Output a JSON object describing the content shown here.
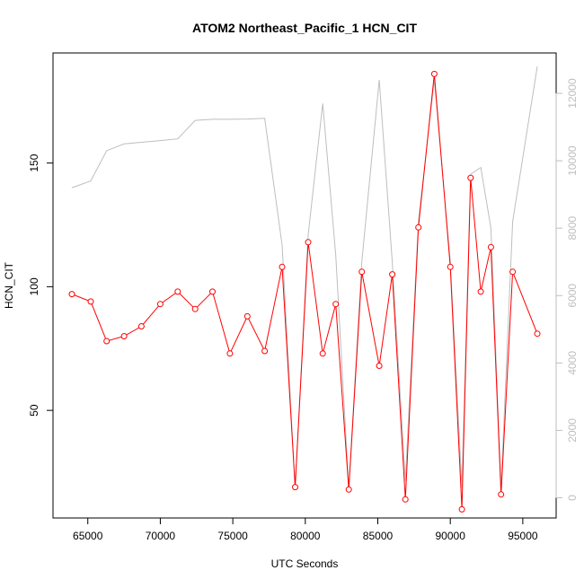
{
  "chart_data": {
    "type": "line",
    "title": "ATOM2 Northeast_Pacific_1 HCN_CIT",
    "xlabel": "UTC Seconds",
    "ylabel": "HCN_CIT",
    "xlim": [
      62600,
      97300
    ],
    "ylim": [
      6.5,
      194.5
    ],
    "y2lim": [
      -600,
      13200
    ],
    "xticks": [
      65000,
      70000,
      75000,
      80000,
      85000,
      90000,
      95000
    ],
    "yticks": [
      50,
      100,
      150
    ],
    "y2ticks": [
      0,
      2000,
      4000,
      6000,
      8000,
      10000,
      12000
    ],
    "colors": {
      "primary": "#ff0000",
      "secondary": "#bebebe",
      "axis": "#000000"
    },
    "series": [
      {
        "axis": "left",
        "color": "#ff0000",
        "markers": "open-circle",
        "x": [
          63900,
          65200,
          66300,
          67500,
          68700,
          70000,
          71200,
          72400,
          73600,
          74800,
          76000,
          77200,
          78400,
          79300,
          80200,
          81200,
          82100,
          83000,
          83900,
          85100,
          86000,
          86900,
          87800,
          88900,
          90000,
          90800,
          91400,
          92100,
          92800,
          93500,
          94300,
          96000
        ],
        "y": [
          97,
          94,
          78,
          80,
          84,
          93,
          98,
          91,
          98,
          73,
          88,
          74,
          108,
          19,
          118,
          73,
          93,
          18,
          106,
          68,
          105,
          14,
          124,
          186,
          108,
          10,
          144,
          98,
          116,
          16,
          106,
          81
        ]
      },
      {
        "axis": "right",
        "color": "#bebebe",
        "markers": "none",
        "x": [
          63900,
          65200,
          66300,
          67500,
          68700,
          70000,
          71200,
          72400,
          73600,
          74800,
          76000,
          77200,
          78400,
          79300,
          80200,
          81200,
          82100,
          83000,
          83900,
          85100,
          86000,
          86900,
          87800,
          88900,
          90000,
          90800,
          91400,
          92100,
          92800,
          93500,
          94300,
          96000
        ],
        "y": [
          9200,
          9400,
          10300,
          10500,
          10550,
          10600,
          10650,
          11200,
          11230,
          11230,
          11240,
          11260,
          7500,
          300,
          7800,
          11700,
          7200,
          300,
          7000,
          12400,
          7000,
          500,
          8200,
          12400,
          7000,
          300,
          9600,
          9800,
          8000,
          300,
          8200,
          12800
        ]
      }
    ]
  }
}
